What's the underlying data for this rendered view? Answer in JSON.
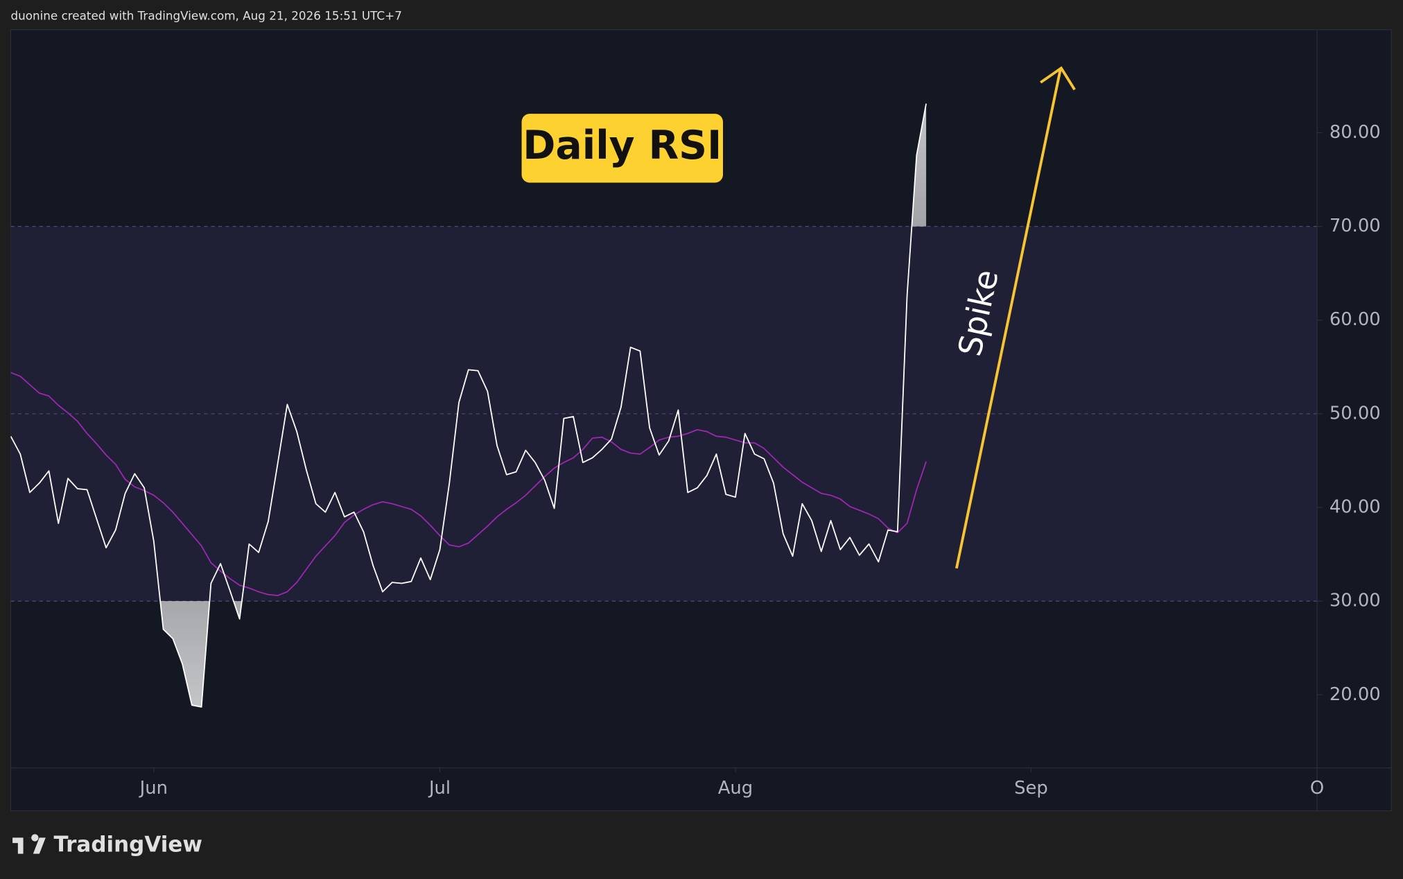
{
  "header": "duonine created with TradingView.com, Aug 21, 2026 15:51 UTC+7",
  "footer": "TradingView",
  "chart_data": {
    "type": "line",
    "title": "Daily RSI",
    "annotations": [
      "Spike"
    ],
    "x": [
      -15,
      -14,
      -13,
      -12,
      -11,
      -10,
      -9,
      -8,
      -7,
      -6,
      -5,
      -4,
      -3,
      -2,
      -1,
      0,
      1,
      2,
      3,
      4,
      5,
      6,
      7,
      8,
      9,
      10,
      11,
      12,
      13,
      14,
      15,
      16,
      17,
      18,
      19,
      20,
      21,
      22,
      23,
      24,
      25,
      26,
      27,
      28,
      29,
      30,
      31,
      32,
      33,
      34,
      35,
      36,
      37,
      38,
      39,
      40,
      41,
      42,
      43,
      44,
      45,
      46,
      47,
      48,
      49,
      50,
      51,
      52,
      53,
      54,
      55,
      56,
      57,
      58,
      59,
      60,
      61,
      62,
      63,
      64,
      65,
      66,
      67,
      68,
      69,
      70,
      71,
      72,
      73,
      74,
      75,
      76,
      77,
      78,
      79,
      80,
      81
    ],
    "xlim": [
      -15,
      122
    ],
    "xticks": [
      {
        "value": 0,
        "label": "Jun"
      },
      {
        "value": 30,
        "label": "Jul"
      },
      {
        "value": 61,
        "label": "Aug"
      },
      {
        "value": 92,
        "label": "Sep"
      },
      {
        "value": 122,
        "label": "O"
      }
    ],
    "ylim": [
      12.2,
      91.0
    ],
    "yticks": [
      {
        "value": 20,
        "label": "20.00"
      },
      {
        "value": 30,
        "label": "30.00"
      },
      {
        "value": 40,
        "label": "40.00"
      },
      {
        "value": 50,
        "label": "50.00"
      },
      {
        "value": 60,
        "label": "60.00"
      },
      {
        "value": 70,
        "label": "70.00"
      },
      {
        "value": 80,
        "label": "80.00"
      }
    ],
    "bands": [
      30,
      70
    ],
    "midline": 50,
    "series": [
      {
        "color": "#ffffff",
        "values": [
          47.6,
          45.7,
          41.6,
          42.6,
          43.9,
          38.3,
          43.1,
          42.0,
          41.9,
          38.8,
          35.7,
          37.6,
          41.5,
          43.6,
          42.1,
          36.4,
          27.0,
          26.0,
          23.3,
          18.9,
          18.7,
          31.9,
          34.0,
          31.1,
          28.1,
          36.1,
          35.2,
          38.5,
          44.7,
          51.0,
          48.1,
          44.0,
          40.4,
          39.5,
          41.6,
          39.0,
          39.5,
          37.4,
          33.8,
          31.0,
          32.0,
          31.9,
          32.1,
          34.6,
          32.3,
          35.5,
          42.6,
          51.2,
          54.7,
          54.6,
          52.4,
          46.6,
          43.5,
          43.8,
          46.1,
          44.8,
          42.9,
          39.9,
          49.5,
          49.7,
          44.8,
          45.3,
          46.2,
          47.3,
          50.7,
          57.1,
          56.7,
          48.5,
          45.6,
          47.1,
          50.4,
          41.6,
          42.1,
          43.4,
          45.7,
          41.4,
          41.1,
          47.9,
          45.7,
          45.2,
          42.6,
          37.2,
          34.8,
          40.4,
          38.6,
          35.3,
          38.6,
          35.5,
          36.8,
          34.9,
          36.1,
          34.2,
          37.6,
          37.4,
          62.6,
          77.6,
          83.1
        ]
      },
      {
        "color": "#9c27b0",
        "values": [
          54.4,
          54.0,
          53.1,
          52.2,
          51.9,
          50.9,
          50.1,
          49.2,
          47.9,
          46.8,
          45.6,
          44.6,
          43.0,
          42.2,
          41.8,
          41.3,
          40.5,
          39.5,
          38.3,
          37.1,
          35.9,
          34.1,
          33.2,
          32.4,
          31.7,
          31.4,
          31.0,
          30.7,
          30.6,
          31.0,
          32.0,
          33.4,
          34.8,
          35.9,
          37.0,
          38.4,
          39.2,
          39.8,
          40.3,
          40.6,
          40.4,
          40.1,
          39.8,
          39.1,
          38.1,
          37.0,
          36.0,
          35.8,
          36.2,
          37.1,
          38.0,
          39.0,
          39.8,
          40.5,
          41.3,
          42.3,
          43.3,
          44.2,
          44.8,
          45.3,
          46.2,
          47.4,
          47.5,
          47.0,
          46.2,
          45.8,
          45.7,
          46.4,
          47.2,
          47.5,
          47.6,
          47.9,
          48.3,
          48.1,
          47.6,
          47.5,
          47.2,
          46.9,
          46.9,
          46.3,
          45.3,
          44.3,
          43.5,
          42.7,
          42.1,
          41.5,
          41.3,
          40.9,
          40.1,
          39.7,
          39.3,
          38.8,
          37.8,
          37.3,
          38.3,
          41.9,
          44.9
        ]
      }
    ]
  }
}
